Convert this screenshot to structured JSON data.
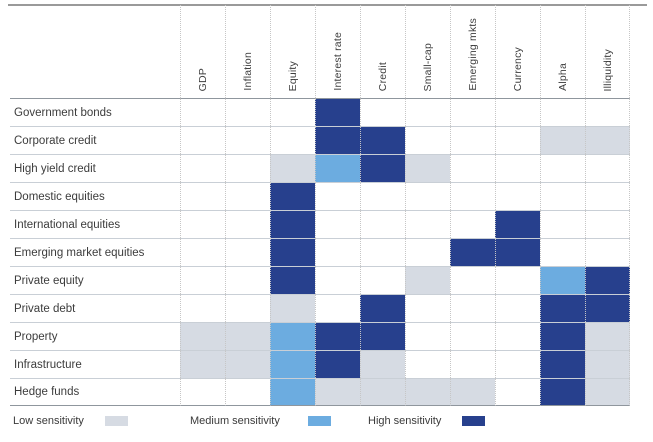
{
  "chart_data": {
    "type": "heatmap",
    "title": "",
    "columns": [
      "GDP",
      "Inflation",
      "Equity",
      "Interest rate",
      "Credit",
      "Small-cap",
      "Emerging mkts",
      "Currency",
      "Alpha",
      "Illiquidity"
    ],
    "rows": [
      "Government bonds",
      "Corporate credit",
      "High yield credit",
      "Domestic equities",
      "International equities",
      "Emerging market equities",
      "Private equity",
      "Private debt",
      "Property",
      "Infrastructure",
      "Hedge funds"
    ],
    "values": [
      [
        "",
        "",
        "",
        "high",
        "",
        "",
        "",
        "",
        "",
        ""
      ],
      [
        "",
        "",
        "",
        "high",
        "high",
        "",
        "",
        "",
        "low",
        "low"
      ],
      [
        "",
        "",
        "low",
        "medium",
        "high",
        "low",
        "",
        "",
        "",
        ""
      ],
      [
        "",
        "",
        "high",
        "",
        "",
        "",
        "",
        "",
        "",
        ""
      ],
      [
        "",
        "",
        "high",
        "",
        "",
        "",
        "",
        "high",
        "",
        ""
      ],
      [
        "",
        "",
        "high",
        "",
        "",
        "",
        "high",
        "high",
        "",
        ""
      ],
      [
        "",
        "",
        "high",
        "",
        "",
        "low",
        "",
        "",
        "medium",
        "high"
      ],
      [
        "",
        "",
        "low",
        "",
        "high",
        "",
        "",
        "",
        "high",
        "high"
      ],
      [
        "low",
        "low",
        "medium",
        "high",
        "high",
        "",
        "",
        "",
        "high",
        "low"
      ],
      [
        "low",
        "low",
        "medium",
        "high",
        "low",
        "",
        "",
        "",
        "high",
        "low"
      ],
      [
        "",
        "",
        "medium",
        "low",
        "low",
        "low",
        "low",
        "",
        "high",
        "low"
      ]
    ],
    "legend": [
      {
        "key": "low",
        "label": "Low sensitivity",
        "color": "#D6DBE3"
      },
      {
        "key": "medium",
        "label": "Medium sensitivity",
        "color": "#6CACE0"
      },
      {
        "key": "high",
        "label": "High sensitivity",
        "color": "#27408D"
      }
    ],
    "layout": {
      "grid": "on",
      "legend_position": "bottom",
      "column_labels_rotated": true
    }
  }
}
